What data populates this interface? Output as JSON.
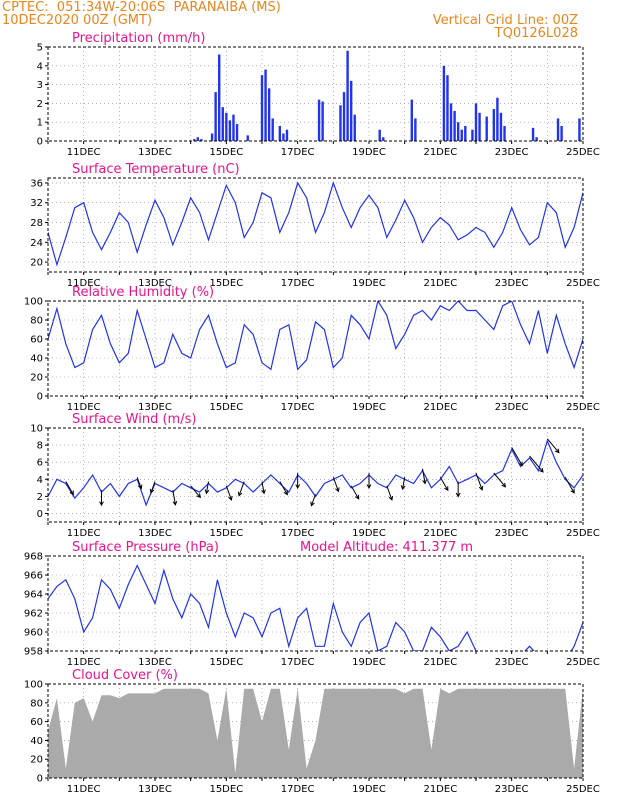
{
  "header": {
    "line1_left": "CPTEC:  051:34W-20:06S  PARANAIBA (MS)",
    "line2_left": "10DEC2020 00Z (GMT)",
    "line1_right": "Vertical Grid Line: 00Z",
    "line2_right": "TQ0126L028"
  },
  "colors": {
    "series": "#2233ee",
    "title": "#e8138e",
    "header": "#e8861c",
    "cloud": "#aaaaaa",
    "grid": "#888888"
  },
  "chart_data": [
    {
      "type": "bar",
      "title": "Precipitation (mm/h)",
      "ylim": [
        0,
        5
      ],
      "yticks": [
        0,
        1,
        2,
        3,
        4,
        5
      ],
      "xticks": [
        "11DEC",
        "13DEC",
        "15DEC",
        "17DEC",
        "19DEC",
        "21DEC",
        "23DEC",
        "25DEC"
      ],
      "x": [
        4.1,
        4.2,
        4.3,
        4.6,
        4.7,
        4.8,
        4.9,
        5.0,
        5.1,
        5.2,
        5.3,
        5.6,
        6.0,
        6.1,
        6.2,
        6.3,
        6.5,
        6.6,
        6.7,
        7.6,
        7.7,
        8.2,
        8.3,
        8.4,
        8.5,
        8.6,
        9.3,
        9.4,
        10.2,
        10.3,
        11.1,
        11.2,
        11.3,
        11.4,
        11.5,
        11.6,
        11.7,
        11.9,
        12.0,
        12.1,
        12.3,
        12.5,
        12.6,
        12.7,
        12.8,
        13.6,
        13.7,
        14.3,
        14.4,
        14.9
      ],
      "y": [
        0.1,
        0.2,
        0.1,
        0.4,
        2.6,
        4.6,
        1.8,
        1.5,
        1.1,
        1.4,
        0.9,
        0.3,
        3.5,
        3.8,
        2.8,
        1.2,
        0.8,
        0.4,
        0.6,
        2.2,
        2.1,
        1.9,
        2.6,
        4.8,
        3.2,
        1.4,
        0.6,
        0.2,
        2.2,
        1.2,
        4.0,
        3.5,
        2.0,
        1.6,
        1.0,
        0.6,
        0.8,
        0.6,
        2.0,
        1.5,
        1.3,
        1.7,
        2.3,
        1.5,
        0.8,
        0.7,
        0.2,
        1.2,
        0.8,
        1.2
      ]
    },
    {
      "type": "line",
      "title": "Surface Temperature (nC)",
      "ylim": [
        18,
        37
      ],
      "yticks": [
        20,
        24,
        28,
        32,
        36
      ],
      "xticks": [
        "11DEC",
        "13DEC",
        "15DEC",
        "17DEC",
        "19DEC",
        "21DEC",
        "23DEC",
        "25DEC"
      ],
      "x": [
        0.0,
        0.25,
        0.5,
        0.75,
        1.0,
        1.25,
        1.5,
        1.75,
        2.0,
        2.25,
        2.5,
        2.75,
        3.0,
        3.25,
        3.5,
        3.75,
        4.0,
        4.25,
        4.5,
        4.75,
        5.0,
        5.25,
        5.5,
        5.75,
        6.0,
        6.25,
        6.5,
        6.75,
        7.0,
        7.25,
        7.5,
        7.75,
        8.0,
        8.25,
        8.5,
        8.75,
        9.0,
        9.25,
        9.5,
        9.75,
        10.0,
        10.25,
        10.5,
        10.75,
        11.0,
        11.25,
        11.5,
        11.75,
        12.0,
        12.25,
        12.5,
        12.75,
        13.0,
        13.25,
        13.5,
        13.75,
        14.0,
        14.25,
        14.5,
        14.75,
        15.0
      ],
      "y": [
        26.0,
        19.5,
        25.0,
        31.0,
        32.0,
        26.0,
        22.5,
        26.0,
        30.0,
        28.0,
        22.0,
        27.5,
        32.5,
        29.0,
        23.5,
        28.0,
        33.0,
        30.0,
        24.5,
        30.0,
        35.5,
        32.0,
        25.0,
        28.0,
        34.0,
        33.0,
        26.0,
        30.0,
        36.0,
        33.0,
        26.0,
        30.0,
        36.0,
        31.0,
        27.0,
        31.0,
        33.5,
        31.0,
        25.0,
        28.5,
        32.5,
        29.0,
        24.0,
        27.0,
        29.0,
        27.5,
        24.5,
        25.5,
        27.0,
        26.0,
        23.0,
        26.0,
        31.0,
        26.5,
        23.5,
        25.0,
        32.0,
        30.0,
        23.0,
        27.0,
        34.0
      ]
    },
    {
      "type": "line",
      "title": "Relative Humidity (%)",
      "ylim": [
        0,
        100
      ],
      "yticks": [
        0,
        20,
        40,
        60,
        80,
        100
      ],
      "xticks": [
        "11DEC",
        "13DEC",
        "15DEC",
        "17DEC",
        "19DEC",
        "21DEC",
        "23DEC",
        "25DEC"
      ],
      "x": [
        0.0,
        0.25,
        0.5,
        0.75,
        1.0,
        1.25,
        1.5,
        1.75,
        2.0,
        2.25,
        2.5,
        2.75,
        3.0,
        3.25,
        3.5,
        3.75,
        4.0,
        4.25,
        4.5,
        4.75,
        5.0,
        5.25,
        5.5,
        5.75,
        6.0,
        6.25,
        6.5,
        6.75,
        7.0,
        7.25,
        7.5,
        7.75,
        8.0,
        8.25,
        8.5,
        8.75,
        9.0,
        9.25,
        9.5,
        9.75,
        10.0,
        10.25,
        10.5,
        10.75,
        11.0,
        11.25,
        11.5,
        11.75,
        12.0,
        12.25,
        12.5,
        12.75,
        13.0,
        13.25,
        13.5,
        13.75,
        14.0,
        14.25,
        14.5,
        14.75,
        15.0
      ],
      "y": [
        60.0,
        92.0,
        55.0,
        30.0,
        35.0,
        70.0,
        85.0,
        55.0,
        35.0,
        45.0,
        90.0,
        60.0,
        30.0,
        35.0,
        65.0,
        45.0,
        40.0,
        70.0,
        85.0,
        55.0,
        30.0,
        35.0,
        75.0,
        65.0,
        35.0,
        28.0,
        70.0,
        75.0,
        28.0,
        38.0,
        78.0,
        70.0,
        30.0,
        40.0,
        85.0,
        75.0,
        60.0,
        100.0,
        85.0,
        50.0,
        65.0,
        85.0,
        90.0,
        80.0,
        95.0,
        90.0,
        100.0,
        90.0,
        90.0,
        80.0,
        70.0,
        95.0,
        100.0,
        75.0,
        55.0,
        90.0,
        45.0,
        85.0,
        55.0,
        30.0,
        60.0
      ]
    },
    {
      "type": "line",
      "title": "Surface Wind (m/s)",
      "ylim": [
        -1,
        10
      ],
      "yticks": [
        0,
        2,
        4,
        6,
        8,
        10
      ],
      "xticks": [
        "11DEC",
        "13DEC",
        "15DEC",
        "17DEC",
        "19DEC",
        "21DEC",
        "23DEC",
        "25DEC"
      ],
      "x": [
        0.0,
        0.25,
        0.5,
        0.75,
        1.0,
        1.25,
        1.5,
        1.75,
        2.0,
        2.25,
        2.5,
        2.75,
        3.0,
        3.25,
        3.5,
        3.75,
        4.0,
        4.25,
        4.5,
        4.75,
        5.0,
        5.25,
        5.5,
        5.75,
        6.0,
        6.25,
        6.5,
        6.75,
        7.0,
        7.25,
        7.5,
        7.75,
        8.0,
        8.25,
        8.5,
        8.75,
        9.0,
        9.25,
        9.5,
        9.75,
        10.0,
        10.25,
        10.5,
        10.75,
        11.0,
        11.25,
        11.5,
        11.75,
        12.0,
        12.25,
        12.5,
        12.75,
        13.0,
        13.25,
        13.5,
        13.75,
        14.0,
        14.25,
        14.5,
        14.75,
        15.0
      ],
      "y": [
        2.0,
        4.0,
        3.5,
        1.8,
        3.0,
        4.5,
        2.5,
        3.5,
        2.0,
        3.5,
        4.0,
        1.0,
        3.5,
        3.0,
        2.5,
        3.5,
        3.0,
        2.5,
        3.5,
        2.5,
        3.0,
        4.0,
        3.5,
        2.5,
        3.5,
        4.5,
        3.5,
        2.5,
        4.5,
        3.5,
        2.0,
        3.5,
        4.0,
        4.5,
        3.0,
        3.5,
        4.5,
        3.5,
        3.0,
        4.5,
        4.0,
        3.5,
        5.0,
        3.0,
        4.0,
        5.5,
        3.5,
        4.0,
        4.5,
        3.5,
        4.5,
        5.0,
        7.5,
        5.5,
        6.5,
        5.0,
        8.5,
        6.0,
        4.0,
        3.0,
        4.5
      ],
      "arrows_x": [
        0.5,
        1.5,
        2.5,
        3.0,
        3.5,
        4.0,
        4.5,
        5.0,
        5.5,
        6.0,
        6.5,
        7.0,
        7.5,
        8.0,
        8.5,
        9.0,
        9.5,
        10.0,
        10.5,
        11.0,
        11.5,
        12.0,
        12.5,
        13.0,
        13.5,
        14.0,
        14.5
      ],
      "arrows_dir": [
        150,
        180,
        160,
        200,
        170,
        140,
        190,
        160,
        200,
        170,
        150,
        180,
        200,
        160,
        150,
        180,
        160,
        190,
        170,
        150,
        180,
        160,
        140,
        150,
        140,
        140,
        150
      ],
      "arrows_len": [
        3,
        3,
        2,
        2,
        3,
        3,
        2,
        3,
        3,
        2,
        3,
        3,
        2,
        3,
        3,
        3,
        3,
        2,
        3,
        3,
        3,
        4,
        4,
        5,
        5,
        4,
        4
      ]
    },
    {
      "type": "line",
      "title": "Surface Pressure (hPa)",
      "annotation": "Model Altitude: 411.377 m",
      "ylim": [
        958,
        968
      ],
      "yticks": [
        958,
        960,
        962,
        964,
        966,
        968
      ],
      "xticks": [
        "11DEC",
        "13DEC",
        "15DEC",
        "17DEC",
        "19DEC",
        "21DEC",
        "23DEC",
        "25DEC"
      ],
      "x": [
        0.0,
        0.25,
        0.5,
        0.75,
        1.0,
        1.25,
        1.5,
        1.75,
        2.0,
        2.25,
        2.5,
        2.75,
        3.0,
        3.25,
        3.5,
        3.75,
        4.0,
        4.25,
        4.5,
        4.75,
        5.0,
        5.25,
        5.5,
        5.75,
        6.0,
        6.25,
        6.5,
        6.75,
        7.0,
        7.25,
        7.5,
        7.75,
        8.0,
        8.25,
        8.5,
        8.75,
        9.0,
        9.25,
        9.5,
        9.75,
        10.0,
        10.25,
        10.5,
        10.75,
        11.0,
        11.25,
        11.5,
        11.75,
        12.0,
        12.25,
        12.5,
        12.75,
        13.0,
        13.25,
        13.5,
        13.75,
        14.0,
        14.25,
        14.5,
        14.75,
        15.0
      ],
      "y": [
        963.5,
        964.8,
        965.5,
        963.5,
        960.0,
        961.5,
        965.5,
        964.5,
        962.5,
        965.0,
        967.0,
        965.0,
        963.0,
        966.5,
        963.5,
        961.5,
        964.0,
        963.0,
        960.5,
        965.5,
        962.0,
        959.5,
        962.0,
        961.5,
        959.5,
        962.0,
        962.5,
        958.5,
        961.5,
        962.5,
        958.5,
        958.5,
        963.0,
        960.0,
        958.5,
        961.0,
        962.0,
        958.0,
        958.5,
        961.0,
        960.0,
        958.0,
        958.0,
        960.5,
        959.5,
        958.0,
        958.5,
        960.0,
        958.0,
        957.5,
        957.5,
        958.0,
        957.0,
        957.5,
        958.5,
        957.5,
        957.0,
        957.5,
        957.0,
        958.5,
        961.0
      ]
    },
    {
      "type": "area",
      "title": "Cloud Cover (%)",
      "ylim": [
        0,
        100
      ],
      "yticks": [
        0,
        20,
        40,
        60,
        80,
        100
      ],
      "xticks": [
        "11DEC",
        "13DEC",
        "15DEC",
        "17DEC",
        "19DEC",
        "21DEC",
        "23DEC",
        "25DEC"
      ],
      "x": [
        0.0,
        0.25,
        0.5,
        0.75,
        1.0,
        1.25,
        1.5,
        1.75,
        2.0,
        2.25,
        2.5,
        2.75,
        3.0,
        3.25,
        3.5,
        3.75,
        4.0,
        4.25,
        4.5,
        4.75,
        5.0,
        5.25,
        5.5,
        5.75,
        6.0,
        6.25,
        6.5,
        6.75,
        7.0,
        7.25,
        7.5,
        7.75,
        8.0,
        8.25,
        8.5,
        8.75,
        9.0,
        9.25,
        9.5,
        9.75,
        10.0,
        10.25,
        10.5,
        10.75,
        11.0,
        11.25,
        11.5,
        11.75,
        12.0,
        12.25,
        12.5,
        12.75,
        13.0,
        13.25,
        13.5,
        13.75,
        14.0,
        14.25,
        14.5,
        14.75,
        15.0
      ],
      "y": [
        50.0,
        85.0,
        10.0,
        80.0,
        85.0,
        60.0,
        88.0,
        88.0,
        85.0,
        90.0,
        90.0,
        90.0,
        90.0,
        95.0,
        95.0,
        95.0,
        95.0,
        95.0,
        90.0,
        40.0,
        95.0,
        5.0,
        95.0,
        95.0,
        60.0,
        95.0,
        95.0,
        30.0,
        95.0,
        10.0,
        40.0,
        95.0,
        95.0,
        95.0,
        95.0,
        95.0,
        95.0,
        95.0,
        95.0,
        95.0,
        90.0,
        95.0,
        95.0,
        30.0,
        95.0,
        90.0,
        95.0,
        95.0,
        95.0,
        95.0,
        95.0,
        95.0,
        95.0,
        95.0,
        95.0,
        95.0,
        95.0,
        95.0,
        95.0,
        10.0,
        95.0
      ]
    }
  ]
}
